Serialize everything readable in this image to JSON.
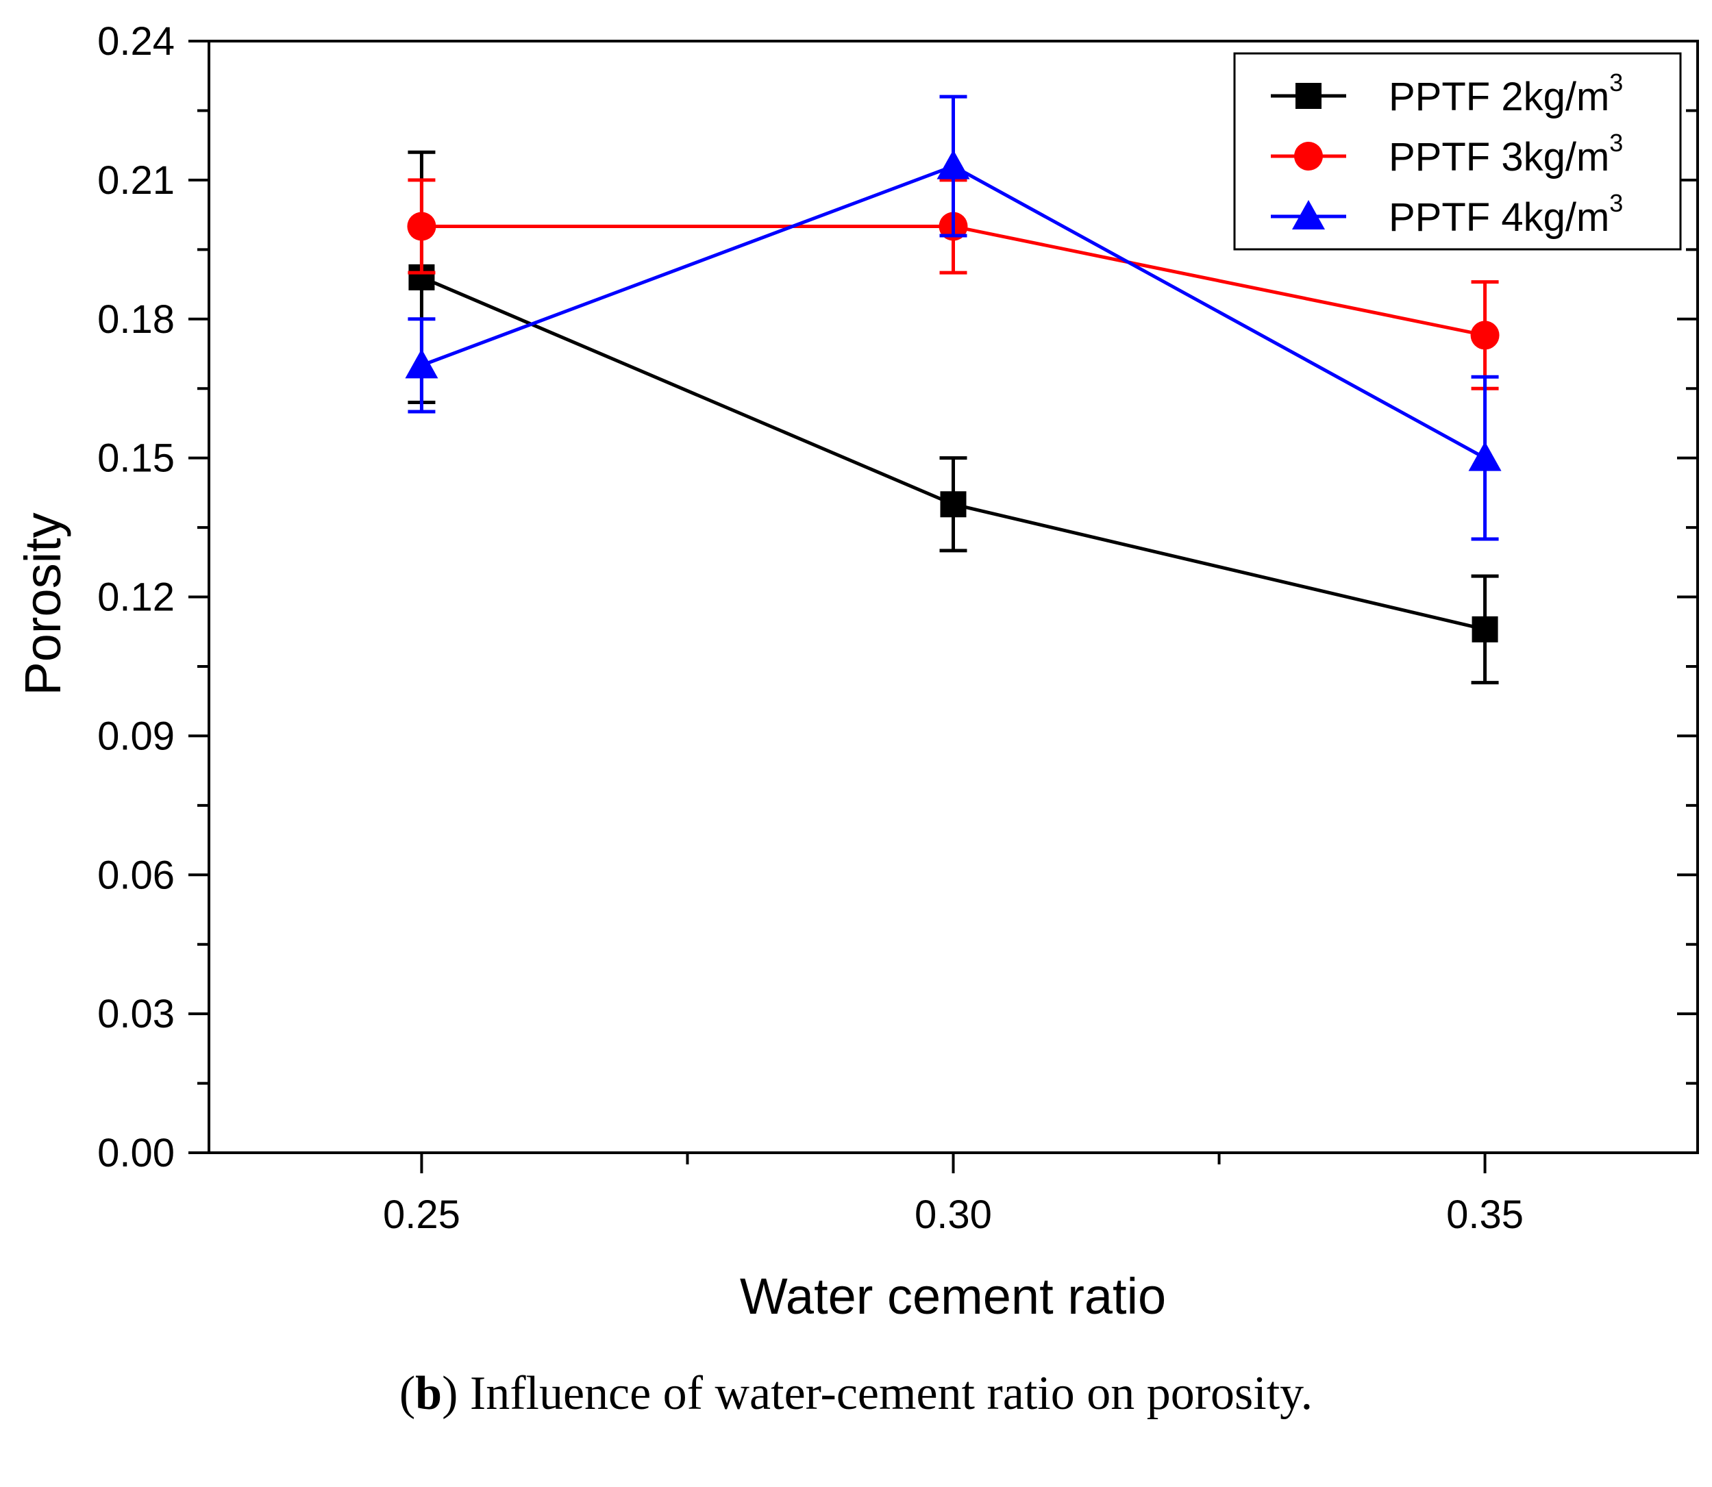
{
  "chart_data": {
    "type": "line",
    "title": "",
    "xlabel": "Water cement ratio",
    "ylabel": "Porosity",
    "x": [
      0.25,
      0.3,
      0.35
    ],
    "x_tick_labels": [
      "0.25",
      "0.30",
      "0.35"
    ],
    "xlim": [
      0.23,
      0.37
    ],
    "ylim": [
      0.0,
      0.24
    ],
    "y_tick_labels": [
      "0.00",
      "0.03",
      "0.06",
      "0.09",
      "0.12",
      "0.15",
      "0.18",
      "0.21",
      "0.24"
    ],
    "grid": false,
    "legend_position": "top-right",
    "series": [
      {
        "name": "PPTF 2kg/m",
        "unit_superscript": "3",
        "color": "#000000",
        "marker": "square",
        "values": [
          0.189,
          0.14,
          0.113
        ],
        "errors": [
          0.027,
          0.01,
          0.0115
        ]
      },
      {
        "name": "PPTF 3kg/m",
        "unit_superscript": "3",
        "color": "#ff0000",
        "marker": "circle",
        "values": [
          0.2,
          0.2,
          0.1765
        ],
        "errors": [
          0.01,
          0.01,
          0.0115
        ]
      },
      {
        "name": "PPTF 4kg/m",
        "unit_superscript": "3",
        "color": "#0000ff",
        "marker": "triangle",
        "values": [
          0.17,
          0.213,
          0.15
        ],
        "errors": [
          0.01,
          0.015,
          0.0175
        ]
      }
    ]
  },
  "caption": {
    "letter": "b",
    "text": "Influence of water-cement ratio on porosity."
  }
}
